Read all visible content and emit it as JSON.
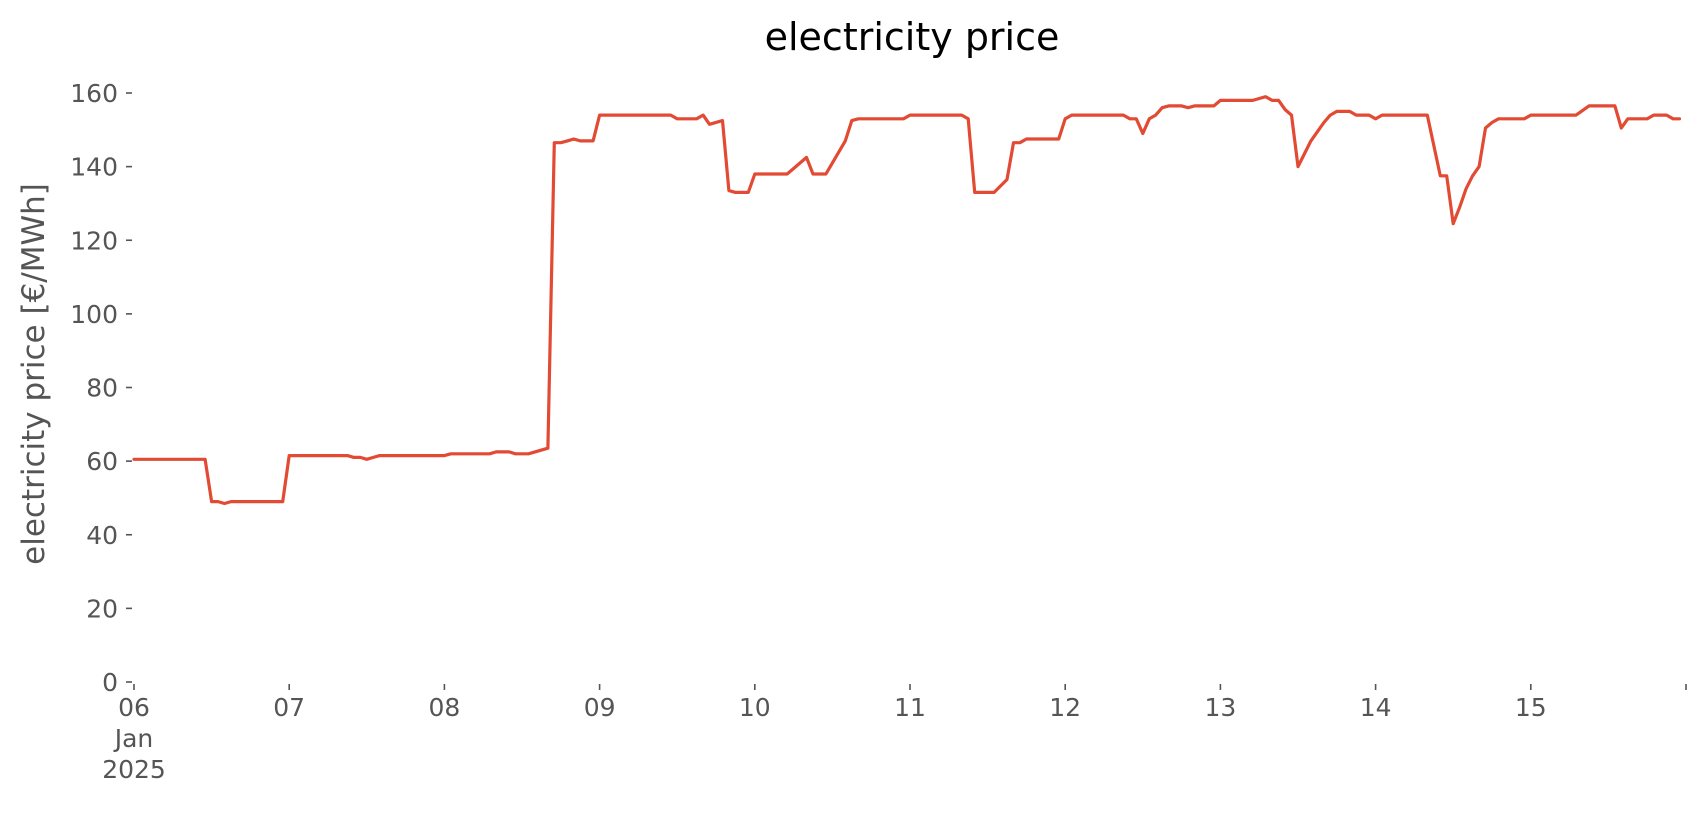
{
  "chart_data": {
    "type": "line",
    "title": "electricity price",
    "xlabel": "",
    "ylabel": "electricity price [€/MWh]",
    "grid": false,
    "legend": "none",
    "x_axis": {
      "type": "date",
      "range": [
        "2025-01-06T00:00",
        "2025-01-16T00:00"
      ],
      "ticks": [
        {
          "value": "2025-01-06T00:00",
          "lines": [
            "06",
            "Jan",
            "2025"
          ]
        },
        {
          "value": "2025-01-07T00:00",
          "lines": [
            "07"
          ]
        },
        {
          "value": "2025-01-08T00:00",
          "lines": [
            "08"
          ]
        },
        {
          "value": "2025-01-09T00:00",
          "lines": [
            "09"
          ]
        },
        {
          "value": "2025-01-10T00:00",
          "lines": [
            "10"
          ]
        },
        {
          "value": "2025-01-11T00:00",
          "lines": [
            "11"
          ]
        },
        {
          "value": "2025-01-12T00:00",
          "lines": [
            "12"
          ]
        },
        {
          "value": "2025-01-13T00:00",
          "lines": [
            "13"
          ]
        },
        {
          "value": "2025-01-14T00:00",
          "lines": [
            "14"
          ]
        },
        {
          "value": "2025-01-15T00:00",
          "lines": [
            "15"
          ]
        },
        {
          "value": "2025-01-16T00:00",
          "lines": [
            ""
          ]
        }
      ]
    },
    "y_axis": {
      "range": [
        0,
        160
      ],
      "ticks": [
        "0",
        "20",
        "40",
        "60",
        "80",
        "100",
        "120",
        "140",
        "160"
      ]
    },
    "series": [
      {
        "color": "#e24a33",
        "points": [
          [
            "2025-01-06T00:00",
            60.5
          ],
          [
            "2025-01-06T11:00",
            60.5
          ],
          [
            "2025-01-06T12:00",
            49.0
          ],
          [
            "2025-01-06T13:00",
            49.0
          ],
          [
            "2025-01-06T14:00",
            48.5
          ],
          [
            "2025-01-06T15:00",
            49.0
          ],
          [
            "2025-01-06T23:00",
            49.0
          ],
          [
            "2025-01-07T00:00",
            61.5
          ],
          [
            "2025-01-07T09:00",
            61.5
          ],
          [
            "2025-01-07T10:00",
            61.0
          ],
          [
            "2025-01-07T11:00",
            61.0
          ],
          [
            "2025-01-07T12:00",
            60.5
          ],
          [
            "2025-01-07T13:00",
            61.0
          ],
          [
            "2025-01-07T14:00",
            61.5
          ],
          [
            "2025-01-08T00:00",
            61.5
          ],
          [
            "2025-01-08T01:00",
            62.0
          ],
          [
            "2025-01-08T07:00",
            62.0
          ],
          [
            "2025-01-08T08:00",
            62.5
          ],
          [
            "2025-01-08T10:00",
            62.5
          ],
          [
            "2025-01-08T11:00",
            62.0
          ],
          [
            "2025-01-08T13:00",
            62.0
          ],
          [
            "2025-01-08T15:00",
            63.0
          ],
          [
            "2025-01-08T16:00",
            63.5
          ],
          [
            "2025-01-08T17:00",
            146.5
          ],
          [
            "2025-01-08T18:00",
            146.5
          ],
          [
            "2025-01-08T19:00",
            147.0
          ],
          [
            "2025-01-08T20:00",
            147.5
          ],
          [
            "2025-01-08T21:00",
            147.0
          ],
          [
            "2025-01-08T23:00",
            147.0
          ],
          [
            "2025-01-09T00:00",
            154.0
          ],
          [
            "2025-01-09T11:00",
            154.0
          ],
          [
            "2025-01-09T12:00",
            153.0
          ],
          [
            "2025-01-09T15:00",
            153.0
          ],
          [
            "2025-01-09T16:00",
            154.0
          ],
          [
            "2025-01-09T17:00",
            151.5
          ],
          [
            "2025-01-09T19:00",
            152.5
          ],
          [
            "2025-01-09T20:00",
            133.5
          ],
          [
            "2025-01-09T21:00",
            133.0
          ],
          [
            "2025-01-09T23:00",
            133.0
          ],
          [
            "2025-01-10T00:00",
            138.0
          ],
          [
            "2025-01-10T05:00",
            138.0
          ],
          [
            "2025-01-10T06:00",
            139.5
          ],
          [
            "2025-01-10T08:00",
            142.5
          ],
          [
            "2025-01-10T09:00",
            138.0
          ],
          [
            "2025-01-10T11:00",
            138.0
          ],
          [
            "2025-01-10T12:00",
            141.0
          ],
          [
            "2025-01-10T14:00",
            147.0
          ],
          [
            "2025-01-10T15:00",
            152.5
          ],
          [
            "2025-01-10T16:00",
            153.0
          ],
          [
            "2025-01-10T23:00",
            153.0
          ],
          [
            "2025-01-11T00:00",
            154.0
          ],
          [
            "2025-01-11T08:00",
            154.0
          ],
          [
            "2025-01-11T09:00",
            153.0
          ],
          [
            "2025-01-11T10:00",
            133.0
          ],
          [
            "2025-01-11T13:00",
            133.0
          ],
          [
            "2025-01-11T15:00",
            136.5
          ],
          [
            "2025-01-11T16:00",
            146.5
          ],
          [
            "2025-01-11T17:00",
            146.5
          ],
          [
            "2025-01-11T18:00",
            147.5
          ],
          [
            "2025-01-11T23:00",
            147.5
          ],
          [
            "2025-01-12T00:00",
            153.0
          ],
          [
            "2025-01-12T01:00",
            154.0
          ],
          [
            "2025-01-12T09:00",
            154.0
          ],
          [
            "2025-01-12T10:00",
            153.0
          ],
          [
            "2025-01-12T11:00",
            153.0
          ],
          [
            "2025-01-12T12:00",
            149.0
          ],
          [
            "2025-01-12T13:00",
            153.0
          ],
          [
            "2025-01-12T14:00",
            154.0
          ],
          [
            "2025-01-12T15:00",
            156.0
          ],
          [
            "2025-01-12T16:00",
            156.5
          ],
          [
            "2025-01-12T18:00",
            156.5
          ],
          [
            "2025-01-12T19:00",
            156.0
          ],
          [
            "2025-01-12T20:00",
            156.5
          ],
          [
            "2025-01-12T23:00",
            156.5
          ],
          [
            "2025-01-13T00:00",
            158.0
          ],
          [
            "2025-01-13T05:00",
            158.0
          ],
          [
            "2025-01-13T06:00",
            158.5
          ],
          [
            "2025-01-13T07:00",
            159.0
          ],
          [
            "2025-01-13T08:00",
            158.0
          ],
          [
            "2025-01-13T09:00",
            158.0
          ],
          [
            "2025-01-13T10:00",
            155.5
          ],
          [
            "2025-01-13T11:00",
            154.0
          ],
          [
            "2025-01-13T12:00",
            140.0
          ],
          [
            "2025-01-13T14:00",
            147.0
          ],
          [
            "2025-01-13T16:00",
            152.0
          ],
          [
            "2025-01-13T17:00",
            154.0
          ],
          [
            "2025-01-13T18:00",
            155.0
          ],
          [
            "2025-01-13T20:00",
            155.0
          ],
          [
            "2025-01-13T21:00",
            154.0
          ],
          [
            "2025-01-13T23:00",
            154.0
          ],
          [
            "2025-01-14T00:00",
            153.0
          ],
          [
            "2025-01-14T01:00",
            154.0
          ],
          [
            "2025-01-14T08:00",
            154.0
          ],
          [
            "2025-01-14T10:00",
            137.5
          ],
          [
            "2025-01-14T11:00",
            137.5
          ],
          [
            "2025-01-14T12:00",
            124.5
          ],
          [
            "2025-01-14T13:00",
            129.0
          ],
          [
            "2025-01-14T14:00",
            134.0
          ],
          [
            "2025-01-14T15:00",
            137.5
          ],
          [
            "2025-01-14T16:00",
            140.0
          ],
          [
            "2025-01-14T17:00",
            150.5
          ],
          [
            "2025-01-14T18:00",
            152.0
          ],
          [
            "2025-01-14T19:00",
            153.0
          ],
          [
            "2025-01-14T23:00",
            153.0
          ],
          [
            "2025-01-15T00:00",
            154.0
          ],
          [
            "2025-01-15T07:00",
            154.0
          ],
          [
            "2025-01-15T09:00",
            156.5
          ],
          [
            "2025-01-15T13:00",
            156.5
          ],
          [
            "2025-01-15T14:00",
            150.5
          ],
          [
            "2025-01-15T15:00",
            153.0
          ],
          [
            "2025-01-15T18:00",
            153.0
          ],
          [
            "2025-01-15T19:00",
            154.0
          ],
          [
            "2025-01-15T21:00",
            154.0
          ],
          [
            "2025-01-15T22:00",
            153.0
          ],
          [
            "2025-01-15T23:00",
            153.0
          ]
        ]
      }
    ]
  }
}
